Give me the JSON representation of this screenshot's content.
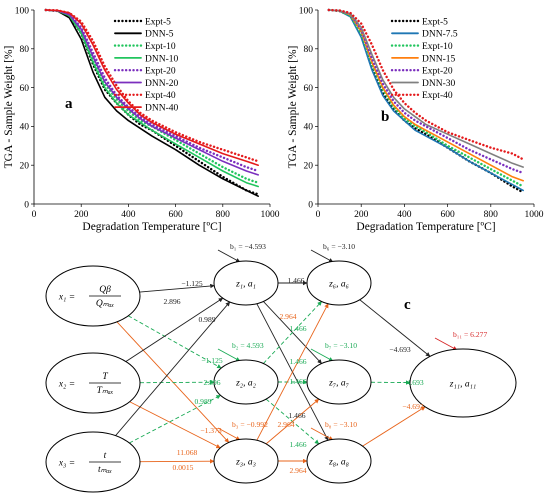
{
  "colors": {
    "expt5": "#000000",
    "dnn5": "#000000",
    "expt10": "#22c55e",
    "dnn10": "#22c55e",
    "expt20": "#7b2fbe",
    "dnn20": "#7b2fbe",
    "expt40": "#e41a1c",
    "dnn40": "#e41a1c",
    "dnn75": "#1f77b4",
    "dnn15": "#ff7f0e",
    "dnn30": "#808080",
    "path_black": "#222222",
    "path_green": "#1aaa55",
    "path_orange": "#e8641b",
    "path_red": "#d62728"
  },
  "chart_data": [
    {
      "type": "line",
      "panel_label": "a",
      "xlabel": "Degradation Temperature [ºC]",
      "ylabel": "TGA - Sample Weight [%]",
      "xlim": [
        0,
        1000
      ],
      "ylim": [
        0,
        100
      ],
      "x_ticks": [
        "0",
        "200",
        "400",
        "600",
        "800",
        "1000"
      ],
      "y_ticks": [
        "0",
        "20",
        "40",
        "60",
        "80",
        "100"
      ],
      "legend_position": "top-right",
      "x": [
        50,
        100,
        150,
        200,
        250,
        300,
        350,
        400,
        450,
        500,
        600,
        700,
        800,
        900,
        950
      ],
      "series": [
        {
          "name": "Expt-5",
          "style": "dotted",
          "color_key": "expt5",
          "values": [
            100,
            99.5,
            97,
            88,
            72,
            59,
            52,
            46,
            41,
            38,
            30,
            22,
            14,
            7,
            5
          ]
        },
        {
          "name": "DNN-5",
          "style": "solid",
          "color_key": "dnn5",
          "values": [
            100,
            99.5,
            96,
            85,
            68,
            55,
            48,
            43,
            39,
            35,
            28,
            20,
            13,
            7,
            4
          ]
        },
        {
          "name": "Expt-10",
          "style": "dotted",
          "color_key": "expt10",
          "values": [
            100,
            99.6,
            97.5,
            90,
            75,
            62,
            54,
            48,
            43,
            40,
            33,
            26,
            19,
            13,
            11
          ]
        },
        {
          "name": "DNN-10",
          "style": "solid",
          "color_key": "dnn10",
          "values": [
            100,
            99.5,
            97,
            88,
            73,
            60,
            52,
            46,
            42,
            38,
            31,
            24,
            17,
            11,
            9
          ]
        },
        {
          "name": "Expt-20",
          "style": "dotted",
          "color_key": "expt20",
          "values": [
            100,
            99.7,
            98,
            91,
            78,
            65,
            56,
            50,
            45,
            41,
            35,
            29,
            24,
            19,
            17
          ]
        },
        {
          "name": "DNN-20",
          "style": "solid",
          "color_key": "dnn20",
          "values": [
            100,
            99.6,
            97.5,
            90,
            76,
            63,
            55,
            49,
            44,
            40,
            34,
            28,
            22,
            17,
            15
          ]
        },
        {
          "name": "Expt-40",
          "style": "dotted",
          "color_key": "expt40",
          "values": [
            100,
            99.8,
            98.5,
            94,
            84,
            71,
            61,
            53,
            47,
            43,
            37,
            32,
            28,
            24,
            22
          ]
        },
        {
          "name": "DNN-40",
          "style": "solid",
          "color_key": "dnn40",
          "values": [
            100,
            99.8,
            98.5,
            93,
            82,
            69,
            59,
            52,
            46,
            42,
            36,
            31,
            26,
            22,
            20
          ]
        }
      ]
    },
    {
      "type": "line",
      "panel_label": "b",
      "xlabel": "Degradation Temperature [ºC]",
      "ylabel": "TGA - Sample Weight [%]",
      "xlim": [
        0,
        1000
      ],
      "ylim": [
        0,
        100
      ],
      "x_ticks": [
        "0",
        "200",
        "400",
        "600",
        "800",
        "1000"
      ],
      "y_ticks": [
        "0",
        "20",
        "40",
        "60",
        "80",
        "100"
      ],
      "legend_position": "top-right",
      "x": [
        50,
        100,
        150,
        200,
        250,
        300,
        350,
        400,
        450,
        500,
        600,
        700,
        800,
        900,
        950
      ],
      "series": [
        {
          "name": "Expt-5",
          "style": "dotted",
          "color_key": "expt5",
          "values": [
            100,
            99.5,
            97,
            87,
            70,
            57,
            49,
            43,
            39,
            36,
            29,
            22,
            16,
            9,
            6
          ]
        },
        {
          "name": "DNN-7.5",
          "style": "solid",
          "color_key": "dnn75",
          "values": [
            100,
            99.5,
            96.5,
            86,
            69,
            56,
            48,
            43,
            38,
            35,
            29,
            22,
            16,
            10,
            7
          ]
        },
        {
          "name": "Expt-10",
          "style": "dotted",
          "color_key": "expt10",
          "values": [
            100,
            99.6,
            97,
            88,
            72,
            59,
            50,
            44,
            40,
            37,
            30,
            24,
            18,
            12,
            9
          ]
        },
        {
          "name": "DNN-15",
          "style": "solid",
          "color_key": "dnn15",
          "values": [
            100,
            99.6,
            97.5,
            89,
            73,
            60,
            51,
            45,
            41,
            38,
            32,
            26,
            20,
            14,
            12
          ]
        },
        {
          "name": "Expt-20",
          "style": "dotted",
          "color_key": "expt20",
          "values": [
            100,
            99.7,
            98,
            90,
            75,
            62,
            53,
            47,
            43,
            40,
            34,
            28,
            23,
            18,
            16
          ]
        },
        {
          "name": "DNN-30",
          "style": "solid",
          "color_key": "dnn30",
          "values": [
            100,
            99.7,
            98,
            91,
            77,
            64,
            55,
            49,
            45,
            41,
            36,
            31,
            26,
            21,
            19
          ]
        },
        {
          "name": "Expt-40",
          "style": "dotted",
          "color_key": "expt40",
          "values": [
            100,
            99.8,
            98.5,
            93,
            82,
            69,
            59,
            52,
            47,
            43,
            37,
            33,
            29,
            26,
            23
          ]
        }
      ]
    }
  ],
  "diagram": {
    "panel_label": "c",
    "inputs": [
      {
        "id": "x1",
        "lhs": "x₁ =",
        "num": "Qβ",
        "den": "Qₘₐₓ"
      },
      {
        "id": "x2",
        "lhs": "x₂ =",
        "num": "T",
        "den": "Tₘₐₓ"
      },
      {
        "id": "x3",
        "lhs": "x₃ =",
        "num": "t",
        "den": "tₘₐₓ"
      }
    ],
    "hidden1": [
      {
        "id": "z1",
        "label": "z₁, a₁",
        "bias": "b₁ = −4.593"
      },
      {
        "id": "z2",
        "label": "z₂, a₂",
        "bias": "b₂ = 4.593"
      },
      {
        "id": "z3",
        "label": "z₃, a₃",
        "bias": "b₃ = −0.992"
      }
    ],
    "hidden2": [
      {
        "id": "z6",
        "label": "z₆, a₆",
        "bias": "b₆ = −3.10"
      },
      {
        "id": "z7",
        "label": "z₇, a₇",
        "bias": "b₇ = −3.10"
      },
      {
        "id": "z8",
        "label": "z₈, a₈",
        "bias": "b₈ = −3.10"
      }
    ],
    "output": {
      "id": "z11",
      "label": "z₁₁, a₁₁",
      "bias": "b₁₁ = 6.277"
    },
    "weights": [
      {
        "text": "−1.125",
        "color_key": "path_black"
      },
      {
        "text": "2.896",
        "color_key": "path_black"
      },
      {
        "text": "0.989",
        "color_key": "path_black"
      },
      {
        "text": "1.466",
        "color_key": "path_black"
      },
      {
        "text": "1.466",
        "color_key": "path_black"
      },
      {
        "text": "−4.693",
        "color_key": "path_black"
      },
      {
        "text": "−1.125",
        "color_key": "path_green"
      },
      {
        "text": "2.896",
        "color_key": "path_green"
      },
      {
        "text": "0.989",
        "color_key": "path_green"
      },
      {
        "text": "1.466",
        "color_key": "path_green"
      },
      {
        "text": "1.466",
        "color_key": "path_green"
      },
      {
        "text": "1.466",
        "color_key": "path_green"
      },
      {
        "text": "1.466",
        "color_key": "path_green"
      },
      {
        "text": "−4.693",
        "color_key": "path_green"
      },
      {
        "text": "−1.373",
        "color_key": "path_orange"
      },
      {
        "text": "11.068",
        "color_key": "path_orange"
      },
      {
        "text": "0.0015",
        "color_key": "path_orange"
      },
      {
        "text": "2.964",
        "color_key": "path_orange"
      },
      {
        "text": "2.964",
        "color_key": "path_orange"
      },
      {
        "text": "2.964",
        "color_key": "path_orange"
      },
      {
        "text": "−4.693",
        "color_key": "path_orange"
      }
    ]
  }
}
